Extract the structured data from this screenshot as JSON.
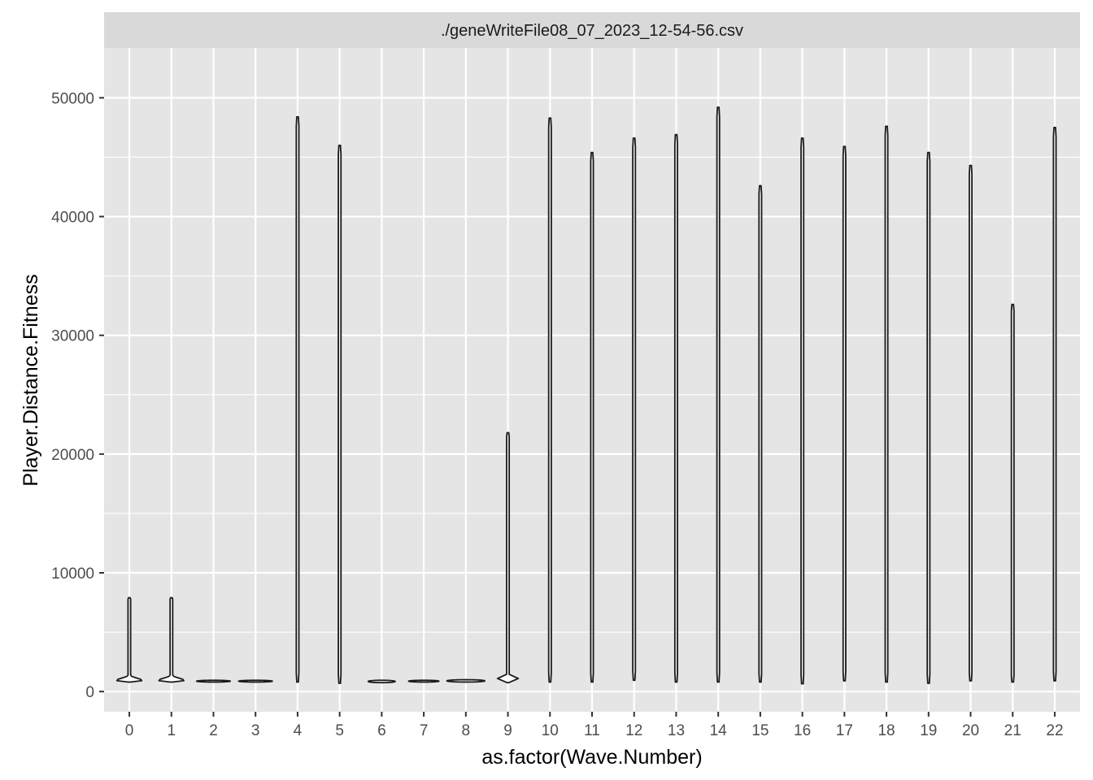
{
  "chart_data": {
    "type": "violin",
    "facet_title": "./geneWriteFile08_07_2023_12-54-56.csv",
    "xlabel": "as.factor(Wave.Number)",
    "ylabel": "Player.Distance.Fitness",
    "categories": [
      "0",
      "1",
      "2",
      "3",
      "4",
      "5",
      "6",
      "7",
      "8",
      "9",
      "10",
      "11",
      "12",
      "13",
      "14",
      "15",
      "16",
      "17",
      "18",
      "19",
      "20",
      "21",
      "22"
    ],
    "ylim": [
      -1700,
      54200
    ],
    "y_ticks": [
      0,
      10000,
      20000,
      30000,
      40000,
      50000
    ],
    "y_tick_labels": [
      "0",
      "10000",
      "20000",
      "30000",
      "40000",
      "50000"
    ],
    "grid": true,
    "colors": {
      "panel_bg": "#e5e5e5",
      "grid_major": "#ffffff",
      "strip_bg": "#d9d9d9",
      "violin_fill": "#ffffff",
      "violin_outline": "#1a1a1a"
    },
    "violins": [
      {
        "category": "0",
        "min": 800,
        "max": 7900,
        "mode": 950,
        "max_halfwidth": 0.3
      },
      {
        "category": "1",
        "min": 800,
        "max": 7900,
        "mode": 950,
        "max_halfwidth": 0.3
      },
      {
        "category": "2",
        "min": 800,
        "max": 950,
        "mode": 880,
        "max_halfwidth": 0.4
      },
      {
        "category": "3",
        "min": 800,
        "max": 950,
        "mode": 880,
        "max_halfwidth": 0.4
      },
      {
        "category": "4",
        "min": 800,
        "max": 48400,
        "mode": 900,
        "max_halfwidth": 0.04
      },
      {
        "category": "5",
        "min": 700,
        "max": 46000,
        "mode": 1000,
        "max_halfwidth": 0.07
      },
      {
        "category": "6",
        "min": 750,
        "max": 950,
        "mode": 870,
        "max_halfwidth": 0.32
      },
      {
        "category": "7",
        "min": 800,
        "max": 950,
        "mode": 880,
        "max_halfwidth": 0.36
      },
      {
        "category": "8",
        "min": 800,
        "max": 1000,
        "mode": 900,
        "max_halfwidth": 0.45
      },
      {
        "category": "9",
        "min": 750,
        "max": 21800,
        "mode": 900,
        "max_halfwidth": 0.46
      },
      {
        "category": "10",
        "min": 800,
        "max": 48300,
        "mode": 900,
        "max_halfwidth": 0.03
      },
      {
        "category": "11",
        "min": 800,
        "max": 45400,
        "mode": 900,
        "max_halfwidth": 0.03
      },
      {
        "category": "12",
        "min": 950,
        "max": 46600,
        "mode": 1100,
        "max_halfwidth": 0.03
      },
      {
        "category": "13",
        "min": 800,
        "max": 46900,
        "mode": 900,
        "max_halfwidth": 0.03
      },
      {
        "category": "14",
        "min": 800,
        "max": 49200,
        "mode": 900,
        "max_halfwidth": 0.03
      },
      {
        "category": "15",
        "min": 800,
        "max": 42600,
        "mode": 900,
        "max_halfwidth": 0.03
      },
      {
        "category": "16",
        "min": 650,
        "max": 46600,
        "mode": 900,
        "max_halfwidth": 0.03
      },
      {
        "category": "17",
        "min": 900,
        "max": 45900,
        "mode": 1000,
        "max_halfwidth": 0.03
      },
      {
        "category": "18",
        "min": 800,
        "max": 47600,
        "mode": 900,
        "max_halfwidth": 0.03
      },
      {
        "category": "19",
        "min": 700,
        "max": 45400,
        "mode": 900,
        "max_halfwidth": 0.03
      },
      {
        "category": "20",
        "min": 900,
        "max": 44300,
        "mode": 1000,
        "max_halfwidth": 0.03
      },
      {
        "category": "21",
        "min": 800,
        "max": 32600,
        "mode": 1000,
        "max_halfwidth": 0.04
      },
      {
        "category": "22",
        "min": 900,
        "max": 47500,
        "mode": 1000,
        "max_halfwidth": 0.03
      }
    ]
  }
}
